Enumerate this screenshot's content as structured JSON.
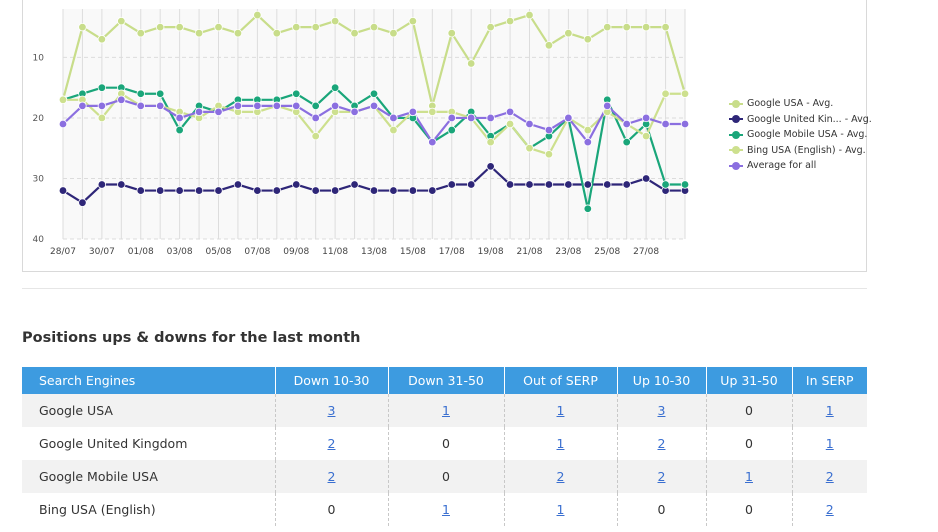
{
  "chart_data": {
    "type": "line",
    "x": [
      "28/07",
      "29/07",
      "30/07",
      "31/07",
      "01/08",
      "02/08",
      "03/08",
      "04/08",
      "05/08",
      "06/08",
      "07/08",
      "08/08",
      "09/08",
      "10/08",
      "11/08",
      "12/08",
      "13/08",
      "14/08",
      "15/08",
      "16/08",
      "17/08",
      "18/08",
      "19/08",
      "20/08",
      "21/08",
      "22/08",
      "23/08",
      "24/08",
      "25/08",
      "26/08",
      "27/08",
      "28/08",
      "29/08"
    ],
    "x_tick_labels": [
      "28/07",
      "30/07",
      "01/08",
      "03/08",
      "05/08",
      "07/08",
      "09/08",
      "11/08",
      "13/08",
      "15/08",
      "17/08",
      "19/08",
      "21/08",
      "23/08",
      "25/08",
      "27/08"
    ],
    "y_ticks": [
      10,
      20,
      30,
      40
    ],
    "ylim": [
      40,
      2
    ],
    "y_inverted": true,
    "grid": true,
    "legend_position": "right",
    "series": [
      {
        "name": "Google USA - Avg.",
        "color": "#c8dd8a",
        "values": [
          17,
          5,
          7,
          4,
          6,
          5,
          5,
          6,
          5,
          6,
          3,
          6,
          5,
          5,
          4,
          6,
          5,
          6,
          4,
          18,
          6,
          11,
          5,
          4,
          3,
          8,
          6,
          7,
          5,
          5,
          5,
          5,
          16
        ]
      },
      {
        "name": "Google United Kin... - Avg.",
        "color": "#2e2678",
        "values": [
          32,
          34,
          31,
          31,
          32,
          32,
          32,
          32,
          32,
          31,
          32,
          32,
          31,
          32,
          32,
          31,
          32,
          32,
          32,
          32,
          31,
          31,
          28,
          31,
          31,
          31,
          31,
          31,
          31,
          31,
          30,
          32,
          32
        ]
      },
      {
        "name": "Google Mobile USA - Avg.",
        "color": "#1aa67a",
        "values": [
          17,
          16,
          15,
          15,
          16,
          16,
          22,
          18,
          19,
          17,
          17,
          17,
          16,
          18,
          15,
          18,
          16,
          20,
          20,
          24,
          22,
          19,
          23,
          21,
          25,
          23,
          20,
          35,
          17,
          24,
          21,
          31,
          31
        ]
      },
      {
        "name": "Bing USA (English) - Avg.",
        "color": "#cde08e",
        "values": [
          17,
          17,
          20,
          16,
          18,
          18,
          19,
          20,
          18,
          19,
          19,
          18,
          19,
          23,
          19,
          19,
          18,
          22,
          19,
          19,
          19,
          20,
          24,
          21,
          25,
          26,
          20,
          22,
          19,
          21,
          23,
          16,
          16
        ]
      },
      {
        "name": "Average for all",
        "color": "#8b6fe0",
        "values": [
          21,
          18,
          18,
          17,
          18,
          18,
          20,
          19,
          19,
          18,
          18,
          18,
          18,
          20,
          18,
          19,
          18,
          20,
          19,
          24,
          20,
          20,
          20,
          19,
          21,
          22,
          20,
          24,
          18,
          21,
          20,
          21,
          21
        ]
      }
    ]
  },
  "section_title": "Positions ups & downs for the last month",
  "table": {
    "headers": [
      "Search Engines",
      "Down 10-30",
      "Down 31-50",
      "Out of SERP",
      "Up 10-30",
      "Up 31-50",
      "In SERP"
    ],
    "rows": [
      {
        "engine": "Google USA",
        "cells": [
          {
            "v": "3",
            "link": true
          },
          {
            "v": "1",
            "link": true
          },
          {
            "v": "1",
            "link": true
          },
          {
            "v": "3",
            "link": true
          },
          {
            "v": "0",
            "link": false
          },
          {
            "v": "1",
            "link": true
          }
        ]
      },
      {
        "engine": "Google United Kingdom",
        "cells": [
          {
            "v": "2",
            "link": true
          },
          {
            "v": "0",
            "link": false
          },
          {
            "v": "1",
            "link": true
          },
          {
            "v": "2",
            "link": true
          },
          {
            "v": "0",
            "link": false
          },
          {
            "v": "1",
            "link": true
          }
        ]
      },
      {
        "engine": "Google Mobile USA",
        "cells": [
          {
            "v": "2",
            "link": true
          },
          {
            "v": "0",
            "link": false
          },
          {
            "v": "2",
            "link": true
          },
          {
            "v": "2",
            "link": true
          },
          {
            "v": "1",
            "link": true
          },
          {
            "v": "2",
            "link": true
          }
        ]
      },
      {
        "engine": "Bing USA (English)",
        "cells": [
          {
            "v": "0",
            "link": false
          },
          {
            "v": "1",
            "link": true
          },
          {
            "v": "1",
            "link": true
          },
          {
            "v": "0",
            "link": false
          },
          {
            "v": "0",
            "link": false
          },
          {
            "v": "2",
            "link": true
          }
        ]
      }
    ]
  }
}
